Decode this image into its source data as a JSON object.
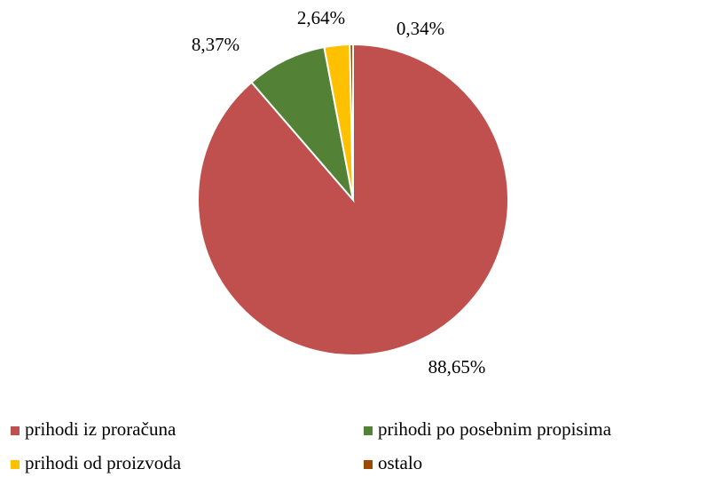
{
  "chart_data": {
    "type": "pie",
    "categories": [
      "prihodi iz proračuna",
      "prihodi po posebnim propisima",
      "prihodi od proizvoda",
      "ostalo"
    ],
    "values": [
      88.65,
      8.37,
      2.64,
      0.34
    ],
    "value_labels": [
      "88,65%",
      "8,37%",
      "2,64%",
      "0,34%"
    ],
    "colors": [
      "#c0504d",
      "#538135",
      "#ffc000",
      "#9c4a00"
    ],
    "legend": "bottom"
  }
}
